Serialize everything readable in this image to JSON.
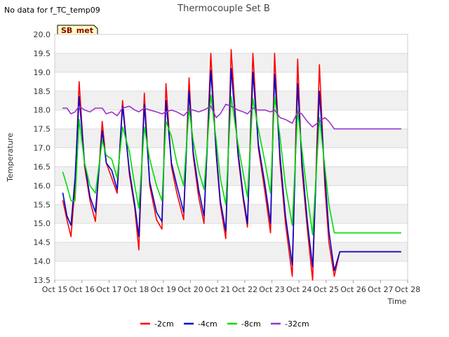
{
  "header": {
    "no_data_text": "No data for f_TC_temp09",
    "badge": "SB_met"
  },
  "chart_data": {
    "type": "line",
    "title": "Thermocouple Set B",
    "xlabel": "Time",
    "ylabel": "Temperature",
    "ylim": [
      13.5,
      20.0
    ],
    "yticks": [
      13.5,
      14.0,
      14.5,
      15.0,
      15.5,
      16.0,
      16.5,
      17.0,
      17.5,
      18.0,
      18.5,
      19.0,
      19.5,
      20.0
    ],
    "xlim_days": [
      15.0,
      28.0
    ],
    "xticks": [
      "Oct 15",
      "Oct 16",
      "Oct 17",
      "Oct 18",
      "Oct 19",
      "Oct 20",
      "Oct 21",
      "Oct 22",
      "Oct 23",
      "Oct 24",
      "Oct 25",
      "Oct 26",
      "Oct 27",
      "Oct 28"
    ],
    "grid": "horizontal bands",
    "legend_position": "bottom",
    "x": [
      15.3,
      15.45,
      15.6,
      15.75,
      15.9,
      16.1,
      16.3,
      16.5,
      16.75,
      16.9,
      17.1,
      17.3,
      17.5,
      17.75,
      17.95,
      18.1,
      18.3,
      18.5,
      18.75,
      18.95,
      19.1,
      19.3,
      19.5,
      19.75,
      19.95,
      20.1,
      20.3,
      20.5,
      20.75,
      20.95,
      21.1,
      21.3,
      21.5,
      21.75,
      21.95,
      22.1,
      22.3,
      22.5,
      22.75,
      22.95,
      23.1,
      23.3,
      23.5,
      23.75,
      23.95,
      24.1,
      24.3,
      24.5,
      24.75,
      24.95,
      25.1,
      25.3,
      25.5,
      25.75,
      25.95,
      26.1,
      26.3,
      26.5,
      26.75,
      26.95,
      27.1,
      27.3,
      27.5,
      27.75
    ],
    "series": [
      {
        "name": "-2cm",
        "color": "#ff0000",
        "values": [
          15.6,
          15.1,
          14.65,
          16.0,
          18.75,
          16.5,
          15.6,
          15.05,
          17.7,
          16.6,
          16.2,
          15.8,
          18.25,
          16.3,
          15.4,
          14.3,
          18.45,
          16.0,
          15.1,
          14.85,
          18.7,
          16.5,
          15.8,
          15.1,
          18.85,
          16.8,
          15.7,
          15.0,
          19.5,
          16.8,
          15.5,
          14.6,
          19.6,
          16.8,
          15.6,
          14.9,
          19.5,
          17.0,
          15.8,
          14.75,
          19.5,
          16.6,
          15.0,
          13.6,
          19.35,
          16.5,
          14.9,
          13.5,
          19.2,
          16.0,
          14.5,
          13.6,
          14.25,
          14.25,
          14.25,
          14.25,
          14.25,
          14.25,
          14.25,
          14.25,
          14.25,
          14.25,
          14.25,
          14.25
        ]
      },
      {
        "name": "-4cm",
        "color": "#0000cc",
        "values": [
          15.8,
          15.2,
          14.95,
          16.2,
          18.35,
          16.6,
          15.7,
          15.3,
          17.45,
          16.6,
          16.4,
          15.9,
          18.1,
          16.4,
          15.5,
          14.65,
          18.15,
          16.1,
          15.3,
          15.05,
          18.25,
          16.6,
          16.0,
          15.3,
          18.5,
          16.9,
          15.9,
          15.2,
          19.05,
          16.9,
          15.6,
          14.8,
          19.1,
          16.9,
          15.7,
          15.0,
          19.0,
          17.1,
          16.0,
          15.0,
          18.95,
          16.8,
          15.2,
          13.9,
          18.7,
          16.7,
          15.1,
          13.85,
          18.5,
          16.3,
          14.8,
          13.75,
          14.25,
          14.25,
          14.25,
          14.25,
          14.25,
          14.25,
          14.25,
          14.25,
          14.25,
          14.25,
          14.25,
          14.25
        ]
      },
      {
        "name": "-8cm",
        "color": "#00dd00",
        "values": [
          16.35,
          16.0,
          15.6,
          15.6,
          17.75,
          16.6,
          16.0,
          15.8,
          17.2,
          16.8,
          16.7,
          16.2,
          17.55,
          16.9,
          16.0,
          15.4,
          17.55,
          16.7,
          16.0,
          15.6,
          17.7,
          17.3,
          16.6,
          16.0,
          18.05,
          17.2,
          16.4,
          15.9,
          18.4,
          17.2,
          16.2,
          15.5,
          18.35,
          17.1,
          16.3,
          15.7,
          18.3,
          17.5,
          16.6,
          15.8,
          18.35,
          17.3,
          16.0,
          14.95,
          18.0,
          17.0,
          15.8,
          14.7,
          17.8,
          16.5,
          15.5,
          14.75,
          14.75,
          14.75,
          14.75,
          14.75,
          14.75,
          14.75,
          14.75,
          14.75,
          14.75,
          14.75,
          14.75,
          14.75
        ]
      },
      {
        "name": "-32cm",
        "color": "#9933cc",
        "values": [
          18.05,
          18.05,
          17.9,
          17.95,
          18.1,
          18.0,
          17.95,
          18.05,
          18.05,
          17.9,
          17.95,
          17.85,
          18.05,
          18.1,
          18.0,
          17.95,
          18.05,
          18.0,
          17.95,
          17.9,
          17.95,
          18.0,
          17.95,
          17.85,
          18.0,
          18.0,
          17.95,
          18.0,
          18.1,
          17.8,
          17.9,
          18.15,
          18.1,
          18.0,
          17.95,
          17.9,
          18.05,
          18.0,
          18.0,
          17.95,
          18.0,
          17.8,
          17.75,
          17.65,
          17.95,
          17.9,
          17.7,
          17.55,
          17.7,
          17.8,
          17.7,
          17.5,
          17.5,
          17.5,
          17.5,
          17.5,
          17.5,
          17.5,
          17.5,
          17.5,
          17.5,
          17.5,
          17.5,
          17.5
        ]
      }
    ]
  }
}
